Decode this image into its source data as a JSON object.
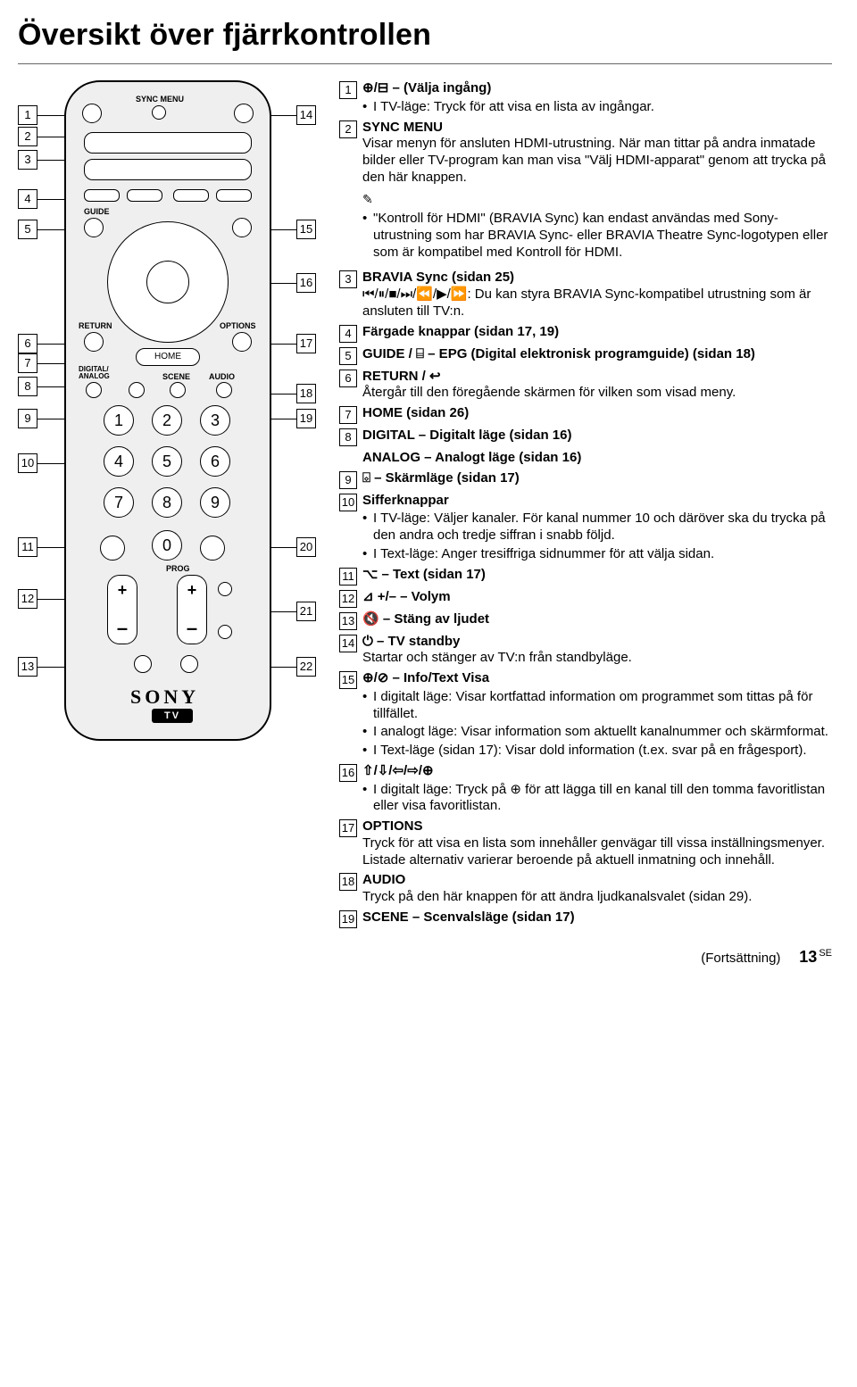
{
  "title": "Översikt över fjärrkontrollen",
  "remote_callouts_left": [
    "1",
    "2",
    "3",
    "4",
    "5",
    "6",
    "7",
    "8",
    "9",
    "10",
    "11",
    "12",
    "13"
  ],
  "remote_callouts_right": [
    "14",
    "15",
    "16",
    "17",
    "18",
    "19",
    "20",
    "21",
    "22"
  ],
  "remote_labels": {
    "sync_menu": "SYNC MENU",
    "guide": "GUIDE",
    "return": "RETURN",
    "options": "OPTIONS",
    "home": "HOME",
    "digital_analog": "DIGITAL/\nANALOG",
    "scene": "SCENE",
    "audio": "AUDIO",
    "prog": "PROG",
    "sony": "SONY",
    "tv": "TV"
  },
  "numkeys": [
    "1",
    "2",
    "3",
    "4",
    "5",
    "6",
    "7",
    "8",
    "9",
    "0"
  ],
  "items": [
    {
      "n": "1",
      "head": "⊕/⊟ – (Välja ingång)",
      "bullets": [
        "I TV-läge: Tryck för att visa en lista av ingångar."
      ]
    },
    {
      "n": "2",
      "head": "SYNC MENU",
      "body": "Visar menyn för ansluten HDMI-utrustning. När man tittar på andra inmatade bilder eller TV-program kan man visa \"Välj HDMI-apparat\" genom att trycka på den här knappen.",
      "note_bullets": [
        "\"Kontroll för HDMI\" (BRAVIA Sync) kan endast användas med Sony-utrustning som har BRAVIA Sync- eller BRAVIA Theatre Sync-logotypen eller som är kompatibel med Kontroll för HDMI."
      ]
    },
    {
      "n": "3",
      "head": "BRAVIA Sync (sidan 25)",
      "body": "⏮/⏸/■/⏭/⏪/▶/⏩: Du kan styra BRAVIA Sync-kompatibel utrustning som är ansluten till TV:n."
    },
    {
      "n": "4",
      "head": "Färgade knappar (sidan 17, 19)"
    },
    {
      "n": "5",
      "head": "GUIDE / ⌸ – EPG (Digital elektronisk programguide) (sidan 18)"
    },
    {
      "n": "6",
      "head": "RETURN / ↩",
      "body": "Återgår till den föregående skärmen för vilken som visad meny."
    },
    {
      "n": "7",
      "head": "HOME (sidan 26)"
    },
    {
      "n": "8",
      "head": "DIGITAL – Digitalt läge (sidan 16)",
      "extra_head": "ANALOG – Analogt läge (sidan 16)"
    },
    {
      "n": "9",
      "head": "⌺ – Skärmläge (sidan 17)"
    },
    {
      "n": "10",
      "head": "Sifferknappar",
      "bullets": [
        "I TV-läge: Väljer kanaler. För kanal nummer 10 och däröver ska du trycka på den andra och tredje siffran i snabb följd.",
        "I Text-läge: Anger tresiffriga sidnummer för att välja sidan."
      ]
    },
    {
      "n": "11",
      "head": "⌥ – Text (sidan 17)"
    },
    {
      "n": "12",
      "head": "⊿ +/– – Volym"
    },
    {
      "n": "13",
      "head": "🔇 – Stäng av ljudet"
    },
    {
      "n": "14",
      "head": "⏻ – TV standby",
      "body": "Startar och stänger av TV:n från standbyläge."
    },
    {
      "n": "15",
      "head": "⊕/⊘ – Info/Text Visa",
      "bullets": [
        "I digitalt läge: Visar kortfattad information om programmet som tittas på för tillfället.",
        "I analogt läge: Visar information som aktuellt kanalnummer och skärmformat.",
        "I Text-läge (sidan 17): Visar dold information (t.ex. svar på en frågesport)."
      ]
    },
    {
      "n": "16",
      "head": "⇧/⇩/⇦/⇨/⊕",
      "bullets": [
        "I digitalt läge: Tryck på ⊕ för att lägga till en kanal till den tomma favoritlistan eller visa favoritlistan."
      ]
    },
    {
      "n": "17",
      "head": "OPTIONS",
      "body": "Tryck för att visa en lista som innehåller genvägar till vissa inställningsmenyer. Listade alternativ varierar beroende på aktuell inmatning och innehåll."
    },
    {
      "n": "18",
      "head": "AUDIO",
      "body": "Tryck på den här knappen för att ändra ljudkanalsvalet (sidan 29)."
    },
    {
      "n": "19",
      "head": "SCENE – Scenvalsläge (sidan 17)"
    }
  ],
  "footer_left": "(Fortsättning)",
  "footer_page": "13",
  "footer_lang": "SE"
}
